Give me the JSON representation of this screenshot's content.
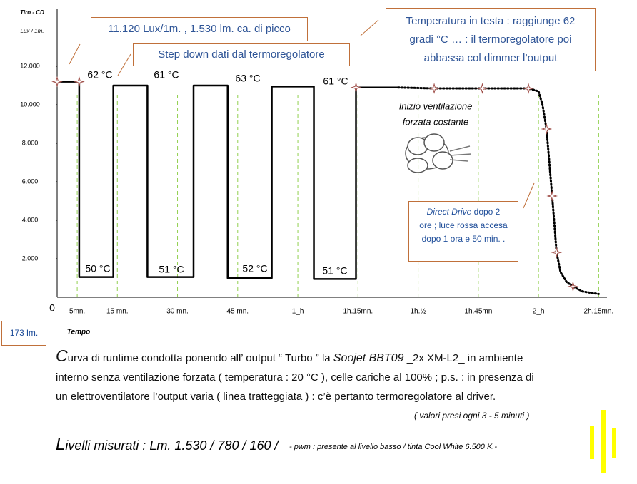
{
  "chart_data": {
    "type": "line",
    "y_label_lines": [
      "Tiro - CD",
      "Lux / 1m."
    ],
    "x_label": "Tempo",
    "xlim": [
      0,
      136
    ],
    "ylim": [
      0,
      15000
    ],
    "xticks": [
      0,
      {
        "value": 5,
        "label": "5mn."
      },
      {
        "value": 15,
        "label": "15 mn."
      },
      {
        "value": 30,
        "label": "30 mn."
      },
      {
        "value": 45,
        "label": "45 mn."
      },
      {
        "value": 60,
        "label": "1_h"
      },
      {
        "value": 75,
        "label": "1h.15mn."
      },
      {
        "value": 90,
        "label": "1h.½"
      },
      {
        "value": 105,
        "label": "1h.45mn"
      },
      {
        "value": 120,
        "label": "2_h"
      },
      {
        "value": 135,
        "label": "2h.15mn."
      }
    ],
    "yticks": [
      {
        "value": 2000,
        "label": "2.000"
      },
      {
        "value": 4000,
        "label": "4.000"
      },
      {
        "value": 6000,
        "label": "6.000"
      },
      {
        "value": 8000,
        "label": "8.000"
      },
      {
        "value": 10000,
        "label": "10.000"
      },
      {
        "value": 12000,
        "label": "12.000"
      }
    ],
    "grid_x": true,
    "grid_color": "#92d050",
    "series": [
      {
        "style": "solid",
        "color": "#000000",
        "x": [
          0,
          5.5,
          5.5,
          14,
          14,
          22.5,
          22.5,
          34,
          34,
          42.5,
          42.5,
          53.5,
          53.5,
          64,
          64,
          74.5,
          74.5,
          85
        ],
        "values": [
          11200,
          11200,
          1050,
          1050,
          11000,
          11000,
          1050,
          1050,
          11000,
          11000,
          1000,
          1000,
          10950,
          10950,
          950,
          950,
          10900,
          10900
        ]
      },
      {
        "style": "dotted",
        "color": "#000000",
        "x": [
          85,
          94,
          106,
          117.5,
          120,
          121,
          122,
          122.7,
          123.4,
          124,
          124.5,
          125.5,
          127,
          128.6,
          131,
          135
        ],
        "values": [
          10900,
          10850,
          10850,
          10850,
          10700,
          10000,
          8740,
          7000,
          5260,
          3700,
          2330,
          1300,
          800,
          560,
          300,
          170
        ]
      }
    ],
    "points": {
      "color": "#a0504a",
      "x": [
        0,
        5.5,
        74.5,
        94,
        106,
        117.5,
        122,
        123.4,
        124.5,
        128.6
      ],
      "y": [
        11200,
        11200,
        10900,
        10850,
        10850,
        10850,
        8740,
        5260,
        2330,
        560
      ]
    },
    "temperature_labels": [
      "62 °C",
      "61 °C",
      "63 °C",
      "61 °C",
      "50 °C",
      "51 °C",
      "52 °C",
      "51 °C"
    ],
    "annotations": {
      "peak": "11.120 Lux/1m. ,  1.530 lm. ca. di picco",
      "step_down": "Step down dati dal termoregolatore",
      "temperature": [
        "Temperatura in testa : raggiunge 62",
        "gradi °C … : il termoregolatore poi",
        "abbassa col dimmer l’output"
      ],
      "ventilation": [
        "Inizio ventilazione",
        "forzata costante"
      ],
      "direct_drive": [
        "Direct Drive",
        " dopo 2",
        "ore ; luce rossa accesa",
        "dopo 1 ora e 50 min. ."
      ],
      "low": "173 lm."
    }
  },
  "caption": {
    "lines": [
      [
        "C",
        "urva di runtime condotta ponendo all’ output “ Turbo ” la ",
        "Soojet BBT09",
        "  _2x XM-L2_  in ambiente"
      ],
      "interno senza ventilazione forzata ( temperatura : 20 °C ), celle cariche al 100%  ;  p.s. : in presenza di",
      "un elettroventilatore l’output varia ( linea tratteggiata ) : c’è pertanto termoregolatore al driver."
    ],
    "note": "( valori presi ogni 3 - 5 minuti )"
  },
  "levels": {
    "initial": "L",
    "text": "ivelli misurati :  Lm. 1.530 / 780 / 160 /",
    "note": "- pwm : presente al livello basso / tinta Cool White 6.500 K.-"
  }
}
